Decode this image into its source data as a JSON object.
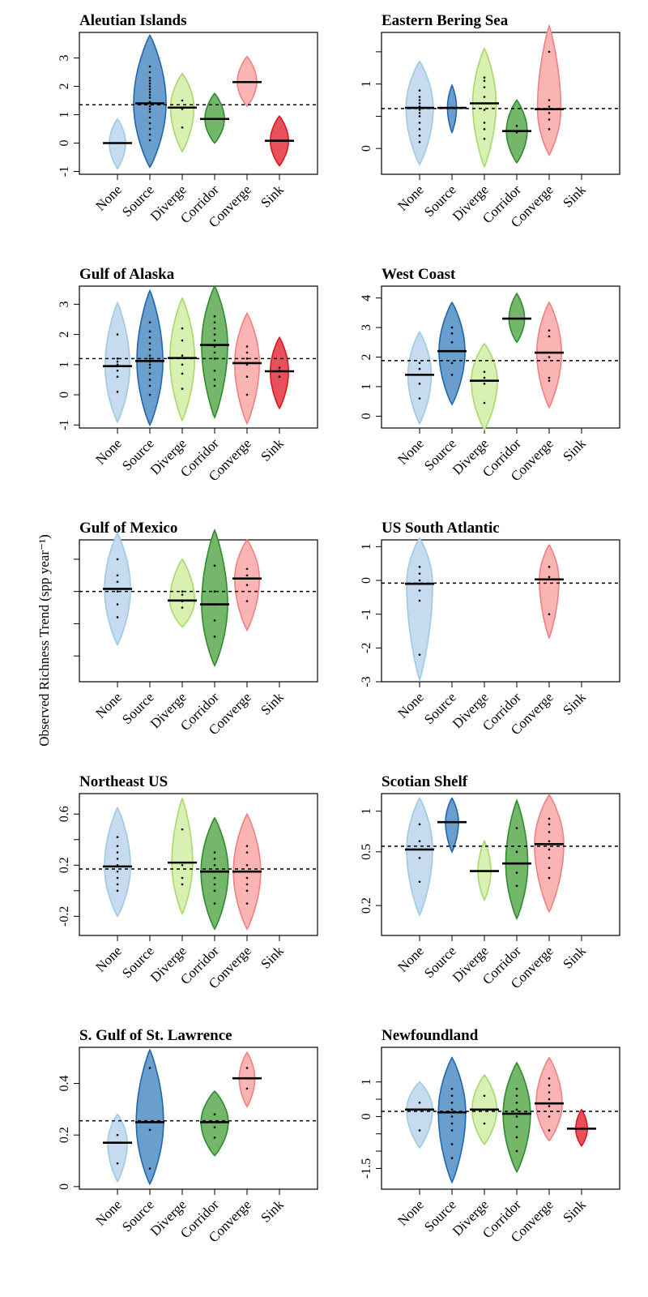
{
  "figure": {
    "ylabel": "Observed Richness Trend (spp year⁻¹)",
    "categories": [
      "None",
      "Source",
      "Diverge",
      "Corridor",
      "Converge",
      "Sink"
    ]
  },
  "colors": {
    "None": {
      "fill": "#c6dbef",
      "stroke": "#9ecae1"
    },
    "Source": {
      "fill": "#6a9fcd",
      "stroke": "#2166ac"
    },
    "Diverge": {
      "fill": "#d9f0b3",
      "stroke": "#a6d96a"
    },
    "Corridor": {
      "fill": "#74b76a",
      "stroke": "#2e8b2e"
    },
    "Converge": {
      "fill": "#fbb4b4",
      "stroke": "#f08080"
    },
    "Sink": {
      "fill": "#e8505b",
      "stroke": "#d7191c"
    }
  },
  "chart_data": [
    {
      "type": "violin",
      "title": "Aleutian Islands",
      "ylim": [
        -1.1,
        3.9
      ],
      "yticks": [
        -1,
        0,
        1,
        2,
        3
      ],
      "ref_line": 1.35,
      "series": [
        {
          "category": "None",
          "median": 0.0,
          "min": -0.9,
          "max": 0.85,
          "width": 0.25,
          "points": []
        },
        {
          "category": "Source",
          "median": 1.4,
          "min": -0.85,
          "max": 3.8,
          "width": 0.5,
          "points": [
            0.1,
            0.3,
            0.5,
            0.7,
            0.9,
            1.1,
            1.2,
            1.3,
            1.45,
            1.6,
            1.7,
            1.8,
            1.9,
            2.0,
            2.1,
            2.2,
            2.3,
            2.5,
            2.7
          ]
        },
        {
          "category": "Diverge",
          "median": 1.25,
          "min": -0.3,
          "max": 2.45,
          "width": 0.36,
          "points": [
            0.55,
            1.2,
            1.5
          ]
        },
        {
          "category": "Corridor",
          "median": 0.85,
          "min": 0.0,
          "max": 1.75,
          "width": 0.3,
          "points": []
        },
        {
          "category": "Converge",
          "median": 2.15,
          "min": 1.3,
          "max": 3.05,
          "width": 0.3,
          "points": []
        },
        {
          "category": "Sink",
          "median": 0.08,
          "min": -0.8,
          "max": 0.95,
          "width": 0.28,
          "points": []
        }
      ]
    },
    {
      "type": "violin",
      "title": "Eastern Bering Sea",
      "ylim": [
        -0.4,
        1.8
      ],
      "yticks": [
        0.0,
        1.0
      ],
      "yticks_minor": [
        0.5,
        1.5
      ],
      "ref_line": 0.62,
      "series": [
        {
          "category": "None",
          "median": 0.63,
          "min": -0.25,
          "max": 1.35,
          "width": 0.42,
          "points": [
            0.1,
            0.2,
            0.3,
            0.4,
            0.5,
            0.55,
            0.6,
            0.65,
            0.7,
            0.75,
            0.8,
            0.9
          ]
        },
        {
          "category": "Source",
          "median": 0.63,
          "min": 0.25,
          "max": 0.98,
          "width": 0.14,
          "points": []
        },
        {
          "category": "Diverge",
          "median": 0.7,
          "min": -0.28,
          "max": 1.55,
          "width": 0.36,
          "points": [
            0.15,
            0.3,
            0.4,
            0.6,
            0.8,
            0.95,
            1.05,
            1.1
          ]
        },
        {
          "category": "Corridor",
          "median": 0.27,
          "min": -0.22,
          "max": 0.75,
          "width": 0.32,
          "points": [
            0.25,
            0.35
          ]
        },
        {
          "category": "Converge",
          "median": 0.61,
          "min": -0.1,
          "max": 1.9,
          "width": 0.36,
          "points": [
            0.3,
            0.45,
            0.55,
            0.65,
            0.75,
            1.5
          ]
        },
        {
          "category": "Sink",
          "median": null,
          "points": []
        }
      ]
    },
    {
      "type": "violin",
      "title": "Gulf of Alaska",
      "ylim": [
        -1.1,
        3.6
      ],
      "yticks": [
        -1,
        0,
        1,
        2,
        3
      ],
      "ref_line": 1.2,
      "series": [
        {
          "category": "None",
          "median": 0.95,
          "min": -0.9,
          "max": 3.05,
          "width": 0.38,
          "points": [
            0.1,
            0.6,
            0.8,
            1.0,
            1.1,
            1.2,
            2.0
          ]
        },
        {
          "category": "Source",
          "median": 1.12,
          "min": -1.0,
          "max": 3.45,
          "width": 0.4,
          "points": [
            0.0,
            0.3,
            0.5,
            0.7,
            0.9,
            1.0,
            1.1,
            1.2,
            1.3,
            1.5,
            1.7,
            1.9,
            2.1,
            2.4
          ]
        },
        {
          "category": "Diverge",
          "median": 1.22,
          "min": -0.85,
          "max": 3.2,
          "width": 0.38,
          "points": [
            0.2,
            0.7,
            1.0,
            1.3,
            1.8,
            2.2
          ]
        },
        {
          "category": "Corridor",
          "median": 1.65,
          "min": -0.75,
          "max": 3.6,
          "width": 0.4,
          "points": [
            0.3,
            0.5,
            0.8,
            1.2,
            1.4,
            1.6,
            1.8,
            2.0,
            2.2,
            2.4,
            2.6
          ]
        },
        {
          "category": "Converge",
          "median": 1.05,
          "min": -0.95,
          "max": 2.7,
          "width": 0.38,
          "points": [
            0.0,
            0.6,
            1.0,
            1.2,
            1.4,
            1.6
          ]
        },
        {
          "category": "Sink",
          "median": 0.78,
          "min": -0.45,
          "max": 1.9,
          "width": 0.28,
          "points": [
            0.6,
            0.8,
            0.9
          ]
        }
      ]
    },
    {
      "type": "violin",
      "title": "West Coast",
      "ylim": [
        -0.4,
        4.4
      ],
      "yticks": [
        0,
        1,
        2,
        3,
        4
      ],
      "ref_line": 1.88,
      "series": [
        {
          "category": "None",
          "median": 1.4,
          "min": -0.25,
          "max": 2.85,
          "width": 0.36,
          "points": [
            0.6,
            1.1,
            1.6,
            1.8
          ]
        },
        {
          "category": "Source",
          "median": 2.2,
          "min": 0.4,
          "max": 3.85,
          "width": 0.4,
          "points": [
            1.4,
            1.8,
            2.2,
            2.5,
            2.8,
            3.0
          ]
        },
        {
          "category": "Diverge",
          "median": 1.2,
          "min": -0.45,
          "max": 2.45,
          "width": 0.4,
          "points": [
            0.45,
            1.1,
            1.3,
            1.5
          ]
        },
        {
          "category": "Corridor",
          "median": 3.3,
          "min": 2.5,
          "max": 4.15,
          "width": 0.24,
          "points": []
        },
        {
          "category": "Converge",
          "median": 2.15,
          "min": 0.3,
          "max": 3.85,
          "width": 0.38,
          "points": [
            1.2,
            1.3,
            2.0,
            2.7,
            2.9
          ]
        },
        {
          "category": "Sink",
          "median": null,
          "points": []
        }
      ]
    },
    {
      "type": "violin",
      "title": "Gulf of Mexico",
      "ylim": [
        -2.8,
        1.6
      ],
      "yticks": [
        -2,
        -1,
        0,
        1
      ],
      "ylabels_hidden": true,
      "ref_line": 0.0,
      "series": [
        {
          "category": "None",
          "median": 0.08,
          "min": -1.65,
          "max": 1.8,
          "width": 0.4,
          "points": [
            -0.8,
            -0.4,
            0.0,
            0.3,
            0.5,
            1.0
          ]
        },
        {
          "category": "Source",
          "median": null,
          "points": []
        },
        {
          "category": "Diverge",
          "median": -0.28,
          "min": -1.1,
          "max": 1.0,
          "width": 0.38,
          "points": [
            -0.5,
            -0.3,
            -0.1,
            0.0
          ]
        },
        {
          "category": "Corridor",
          "median": -0.4,
          "min": -2.3,
          "max": 1.9,
          "width": 0.4,
          "points": [
            -1.4,
            -0.9,
            -0.4,
            0.0,
            0.8
          ]
        },
        {
          "category": "Converge",
          "median": 0.4,
          "min": -1.2,
          "max": 1.6,
          "width": 0.38,
          "points": [
            -0.3,
            0.2,
            0.5,
            0.7
          ]
        },
        {
          "category": "Sink",
          "median": null,
          "points": []
        }
      ]
    },
    {
      "type": "violin",
      "title": "US South Atlantic",
      "ylim": [
        -3.0,
        1.2
      ],
      "yticks": [
        -3,
        -2,
        -1,
        0,
        1
      ],
      "ref_line": -0.08,
      "series": [
        {
          "category": "None",
          "median": -0.1,
          "min": -2.95,
          "max": 1.25,
          "width": 0.4,
          "points": [
            -2.2,
            -0.6,
            -0.3,
            0.0,
            0.2,
            0.4
          ]
        },
        {
          "category": "Source",
          "median": null,
          "points": []
        },
        {
          "category": "Diverge",
          "median": null,
          "points": []
        },
        {
          "category": "Corridor",
          "median": null,
          "points": []
        },
        {
          "category": "Converge",
          "median": 0.03,
          "min": -1.7,
          "max": 1.05,
          "width": 0.3,
          "points": [
            -1.0,
            0.1,
            0.4
          ]
        },
        {
          "category": "Sink",
          "median": null,
          "points": []
        }
      ]
    },
    {
      "type": "violin",
      "title": "Northeast US",
      "ylim": [
        -0.35,
        0.76
      ],
      "yticks": [
        -0.2,
        0.2,
        0.6
      ],
      "yticks_minor": [
        0.0,
        0.4
      ],
      "ref_line": 0.17,
      "series": [
        {
          "category": "None",
          "median": 0.19,
          "min": -0.2,
          "max": 0.65,
          "width": 0.4,
          "points": [
            0.0,
            0.05,
            0.1,
            0.15,
            0.2,
            0.25,
            0.3,
            0.35,
            0.42
          ]
        },
        {
          "category": "Source",
          "median": null,
          "points": []
        },
        {
          "category": "Diverge",
          "median": 0.22,
          "min": -0.18,
          "max": 0.72,
          "width": 0.32,
          "points": [
            0.05,
            0.1,
            0.2,
            0.48
          ]
        },
        {
          "category": "Corridor",
          "median": 0.15,
          "min": -0.3,
          "max": 0.57,
          "width": 0.42,
          "points": [
            -0.1,
            0.0,
            0.05,
            0.1,
            0.15,
            0.2,
            0.25,
            0.3
          ]
        },
        {
          "category": "Converge",
          "median": 0.15,
          "min": -0.3,
          "max": 0.6,
          "width": 0.42,
          "points": [
            -0.1,
            0.0,
            0.05,
            0.1,
            0.15,
            0.2,
            0.3,
            0.35
          ]
        },
        {
          "category": "Sink",
          "median": null,
          "points": []
        }
      ]
    },
    {
      "type": "violin",
      "title": "Scotian Shelf",
      "ylim": [
        0.12,
        1.35
      ],
      "yticks": [
        0.2,
        0.5,
        1.0
      ],
      "ylog": true,
      "ref_line": 0.55,
      "series": [
        {
          "category": "None",
          "median": 0.52,
          "min": 0.17,
          "max": 1.25,
          "width": 0.4,
          "points": [
            0.3,
            0.45,
            0.6,
            0.8
          ]
        },
        {
          "category": "Source",
          "median": 0.83,
          "min": 0.5,
          "max": 1.25,
          "width": 0.2,
          "points": []
        },
        {
          "category": "Diverge",
          "median": 0.36,
          "min": 0.22,
          "max": 0.6,
          "width": 0.2,
          "points": []
        },
        {
          "category": "Corridor",
          "median": 0.41,
          "min": 0.16,
          "max": 1.2,
          "width": 0.34,
          "points": [
            0.28,
            0.35,
            0.5,
            0.75
          ]
        },
        {
          "category": "Converge",
          "median": 0.57,
          "min": 0.18,
          "max": 1.32,
          "width": 0.45,
          "points": [
            0.32,
            0.38,
            0.45,
            0.52,
            0.6,
            0.7,
            0.8,
            0.88
          ]
        },
        {
          "category": "Sink",
          "median": null,
          "points": []
        }
      ]
    },
    {
      "type": "violin",
      "title": "S. Gulf of St. Lawrence",
      "ylim": [
        -0.01,
        0.54
      ],
      "yticks": [
        0.0,
        0.2,
        0.4
      ],
      "ref_line": 0.255,
      "series": [
        {
          "category": "None",
          "median": 0.17,
          "min": 0.02,
          "max": 0.28,
          "width": 0.3,
          "points": [
            0.09,
            0.2
          ]
        },
        {
          "category": "Source",
          "median": 0.25,
          "min": 0.01,
          "max": 0.53,
          "width": 0.42,
          "points": [
            0.07,
            0.22,
            0.46
          ]
        },
        {
          "category": "Diverge",
          "median": null,
          "points": []
        },
        {
          "category": "Corridor",
          "median": 0.25,
          "min": 0.12,
          "max": 0.37,
          "width": 0.42,
          "points": [
            0.19,
            0.23,
            0.28
          ]
        },
        {
          "category": "Converge",
          "median": 0.42,
          "min": 0.31,
          "max": 0.52,
          "width": 0.24,
          "points": [
            0.38,
            0.46
          ]
        },
        {
          "category": "Sink",
          "median": null,
          "points": []
        }
      ]
    },
    {
      "type": "violin",
      "title": "Newfoundland",
      "ylim": [
        -2.1,
        2.0
      ],
      "yticks": [
        -1.5,
        0.0,
        1.0
      ],
      "yticks_minor": [
        -1.0,
        -0.5,
        0.5
      ],
      "ref_line": 0.15,
      "series": [
        {
          "category": "None",
          "median": 0.2,
          "min": -0.9,
          "max": 1.0,
          "width": 0.4,
          "points": [
            -0.4,
            0.2,
            0.4
          ]
        },
        {
          "category": "Source",
          "median": 0.12,
          "min": -1.9,
          "max": 1.7,
          "width": 0.42,
          "points": [
            -1.2,
            -0.8,
            -0.4,
            -0.2,
            0.0,
            0.2,
            0.4,
            0.6,
            0.8
          ]
        },
        {
          "category": "Diverge",
          "median": 0.2,
          "min": -0.8,
          "max": 1.2,
          "width": 0.38,
          "points": [
            -0.2,
            0.2,
            0.6
          ]
        },
        {
          "category": "Corridor",
          "median": 0.08,
          "min": -1.6,
          "max": 1.55,
          "width": 0.42,
          "points": [
            -1.0,
            -0.6,
            -0.3,
            0.0,
            0.2,
            0.4,
            0.6,
            0.8
          ]
        },
        {
          "category": "Converge",
          "median": 0.38,
          "min": -0.7,
          "max": 1.7,
          "width": 0.4,
          "points": [
            -0.4,
            0.0,
            0.3,
            0.5,
            0.7,
            0.9,
            1.1
          ]
        },
        {
          "category": "Sink",
          "median": -0.35,
          "min": -0.85,
          "max": 0.2,
          "width": 0.18,
          "points": []
        }
      ]
    }
  ]
}
